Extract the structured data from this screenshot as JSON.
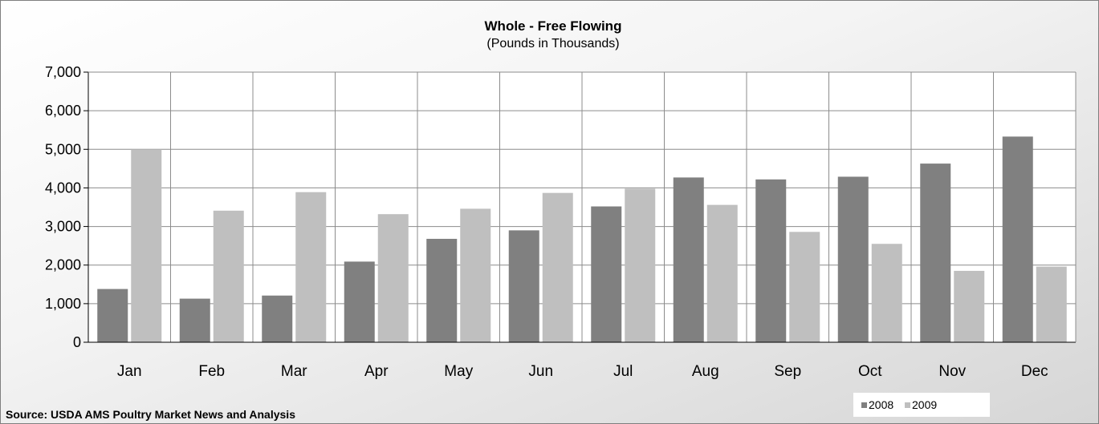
{
  "chart_data": {
    "type": "bar",
    "title": "Whole - Free Flowing",
    "subtitle": "(Pounds in Thousands)",
    "source": "Source: USDA AMS Poultry Market News and Analysis",
    "categories": [
      "Jan",
      "Feb",
      "Mar",
      "Apr",
      "May",
      "Jun",
      "Jul",
      "Aug",
      "Sep",
      "Oct",
      "Nov",
      "Dec"
    ],
    "series": [
      {
        "name": "2008",
        "color": "#808080",
        "values": [
          1380,
          1130,
          1210,
          2090,
          2680,
          2900,
          3520,
          4270,
          4220,
          4290,
          4630,
          5330
        ]
      },
      {
        "name": "2009",
        "color": "#bfbfbf",
        "values": [
          5000,
          3410,
          3890,
          3320,
          3460,
          3870,
          3980,
          3560,
          2860,
          2550,
          1850,
          1960
        ]
      }
    ],
    "ylim": [
      0,
      7000
    ],
    "yticks": [
      0,
      1000,
      2000,
      3000,
      4000,
      5000,
      6000,
      7000
    ],
    "ytick_labels": [
      "0",
      "1,000",
      "2,000",
      "3,000",
      "4,000",
      "5,000",
      "6,000",
      "7,000"
    ],
    "grid": true,
    "legend_position": "bottom-right"
  }
}
